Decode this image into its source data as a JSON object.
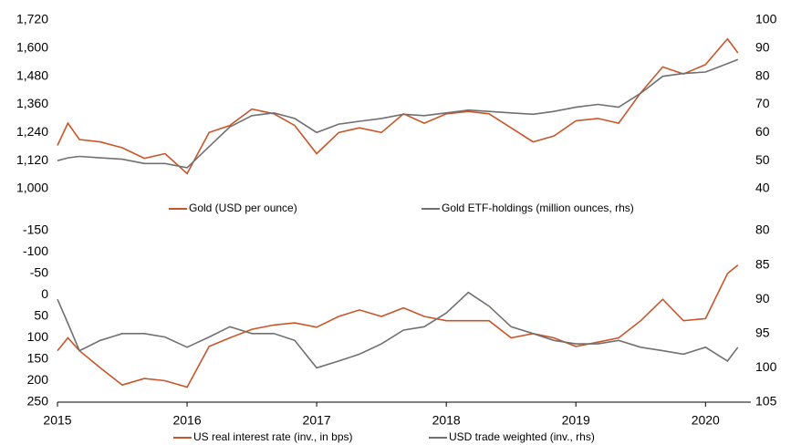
{
  "chart_data": [
    {
      "type": "line",
      "x": [
        2015,
        2015.08,
        2015.17,
        2015.33,
        2015.5,
        2015.67,
        2015.83,
        2016,
        2016.17,
        2016.33,
        2016.5,
        2016.67,
        2016.83,
        2017,
        2017.17,
        2017.33,
        2017.5,
        2017.67,
        2017.83,
        2018,
        2018.17,
        2018.33,
        2018.5,
        2018.67,
        2018.83,
        2019,
        2019.17,
        2019.33,
        2019.5,
        2019.67,
        2019.83,
        2020,
        2020.17,
        2020.25
      ],
      "xlim": [
        2015,
        2020.35
      ],
      "ylim": [
        1000,
        1720
      ],
      "yticks": [
        {
          "value": 1000,
          "label": "1,000"
        },
        {
          "value": 1120,
          "label": "1,120"
        },
        {
          "value": 1240,
          "label": "1,240"
        },
        {
          "value": 1360,
          "label": "1,360"
        },
        {
          "value": 1480,
          "label": "1,480"
        },
        {
          "value": 1600,
          "label": "1,600"
        },
        {
          "value": 1720,
          "label": "1,720"
        }
      ],
      "y2lim": [
        40,
        100
      ],
      "y2ticks": [
        40,
        50,
        60,
        70,
        80,
        90,
        100
      ],
      "series": [
        {
          "name": "Gold (USD per ounce)",
          "color": "#c8562a",
          "values": [
            1185,
            1280,
            1210,
            1200,
            1175,
            1130,
            1150,
            1065,
            1240,
            1270,
            1340,
            1320,
            1270,
            1150,
            1240,
            1260,
            1240,
            1320,
            1280,
            1320,
            1330,
            1320,
            1260,
            1200,
            1225,
            1290,
            1300,
            1280,
            1410,
            1520,
            1490,
            1530,
            1640,
            1580
          ]
        },
        {
          "name": "Gold ETF-holdings (million ounces, rhs)",
          "color": "#707070",
          "axis": "y2",
          "values": [
            50,
            51,
            51.5,
            51,
            50.5,
            49,
            49,
            47.5,
            55,
            62,
            66,
            67,
            65,
            60,
            63,
            64,
            65,
            66.5,
            66,
            67,
            68,
            67.5,
            67,
            66.5,
            67.5,
            69,
            70,
            69,
            74,
            80,
            81,
            81.5,
            84.5,
            86
          ]
        }
      ]
    },
    {
      "type": "line",
      "x": [
        2015,
        2015.08,
        2015.17,
        2015.33,
        2015.5,
        2015.67,
        2015.83,
        2016,
        2016.17,
        2016.33,
        2016.5,
        2016.67,
        2016.83,
        2017,
        2017.17,
        2017.33,
        2017.5,
        2017.67,
        2017.83,
        2018,
        2018.17,
        2018.33,
        2018.5,
        2018.67,
        2018.83,
        2019,
        2019.17,
        2019.33,
        2019.5,
        2019.67,
        2019.83,
        2020,
        2020.17,
        2020.25
      ],
      "xlim": [
        2015,
        2020.35
      ],
      "xticks": [
        2015,
        2016,
        2017,
        2018,
        2019,
        2020
      ],
      "ylim": [
        -150,
        250
      ],
      "y_inverted": true,
      "yticks": [
        -150,
        -100,
        -50,
        0,
        50,
        100,
        150,
        200,
        250
      ],
      "y2lim": [
        80,
        105
      ],
      "y2_inverted": true,
      "y2ticks": [
        80,
        85,
        90,
        95,
        100,
        105
      ],
      "series": [
        {
          "name": "US real interest rate (inv., in bps)",
          "color": "#c8562a",
          "values": [
            130,
            100,
            130,
            170,
            210,
            195,
            200,
            215,
            120,
            100,
            80,
            70,
            65,
            75,
            50,
            35,
            50,
            30,
            50,
            60,
            60,
            60,
            100,
            90,
            100,
            120,
            110,
            100,
            60,
            10,
            60,
            55,
            -50,
            -70
          ]
        },
        {
          "name": "USD trade weighted (inv., rhs)",
          "color": "#707070",
          "axis": "y2",
          "values": [
            90,
            93.5,
            97.5,
            96,
            95,
            95,
            95.5,
            97,
            95.5,
            94,
            95,
            95,
            96,
            100,
            99,
            98,
            96.5,
            94.5,
            94,
            92,
            89,
            91,
            94,
            95,
            96,
            96.5,
            96.5,
            96,
            97,
            97.5,
            98,
            97,
            99,
            97
          ]
        }
      ]
    }
  ]
}
